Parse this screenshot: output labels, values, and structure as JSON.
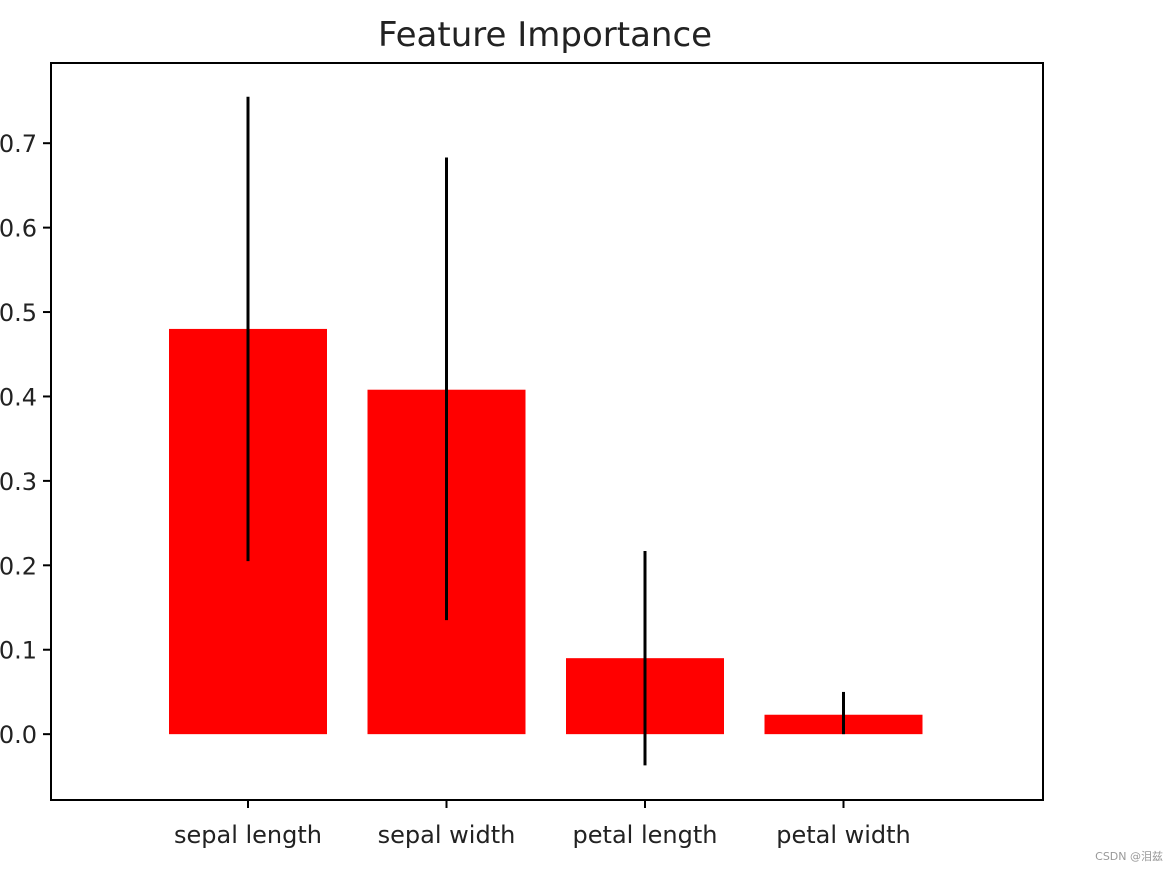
{
  "chart_data": {
    "type": "bar",
    "title": "Feature Importance",
    "xlabel": "",
    "ylabel": "",
    "categories": [
      "sepal length",
      "sepal width",
      "petal length",
      "petal width"
    ],
    "values": [
      0.48,
      0.408,
      0.09,
      0.023
    ],
    "error_low": [
      0.205,
      0.135,
      -0.037,
      0.0
    ],
    "error_high": [
      0.755,
      0.683,
      0.217,
      0.05
    ],
    "bar_color": "#ff0000",
    "error_color": "#000000",
    "ylim": [
      -0.078,
      0.795
    ],
    "yticks": [
      0.0,
      0.1,
      0.2,
      0.3,
      0.4,
      0.5,
      0.6,
      0.7
    ],
    "ytick_labels": [
      "0.0",
      "0.1",
      "0.2",
      "0.3",
      "0.4",
      "0.5",
      "0.6",
      "0.7"
    ],
    "grid": false,
    "legend": "none"
  },
  "watermark": "CSDN @泪兹"
}
